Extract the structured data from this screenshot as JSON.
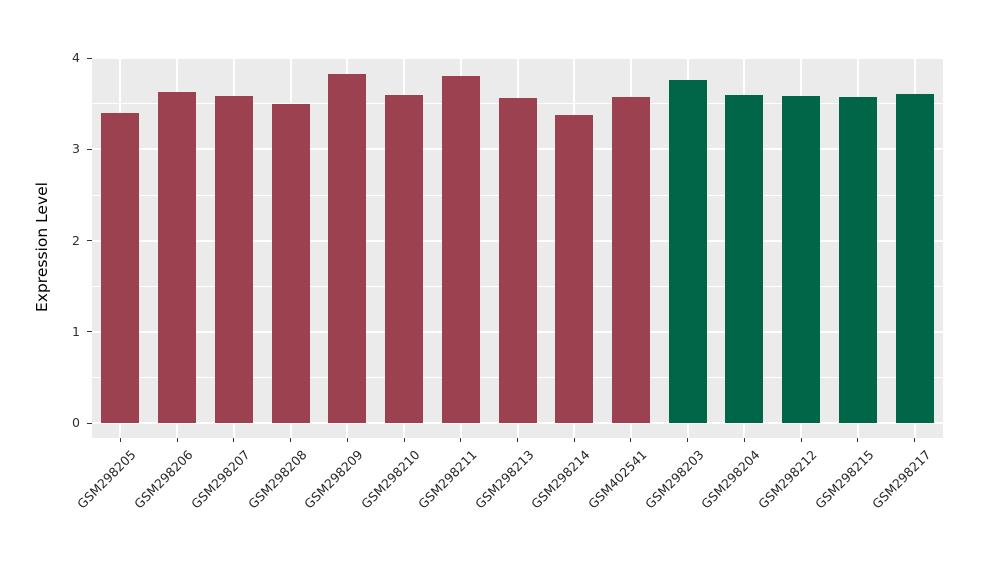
{
  "figure": {
    "background": "#FFFFFF",
    "title": ""
  },
  "chart_data": {
    "type": "bar",
    "title": "",
    "xlabel": "",
    "ylabel": "Expression Level",
    "ylim": [
      0,
      4.05
    ],
    "yticks": [
      0,
      1,
      2,
      3,
      4
    ],
    "ytick_labels": [
      "0",
      "1",
      "2",
      "3",
      "4"
    ],
    "minor_yticks": [
      0.5,
      1.5,
      2.5,
      3.5
    ],
    "grid": "white major horizontal and vertical gridlines with thinner minor horizontal gridlines on grey panel",
    "legend": "none",
    "panel_background": "#EBEBEB",
    "gridline_color": "#FFFFFF",
    "axis_text_color": "#303030",
    "tick_mark_color": "#333333",
    "categories": [
      "GSM298205",
      "GSM298206",
      "GSM298207",
      "GSM298208",
      "GSM298209",
      "GSM298210",
      "GSM298211",
      "GSM298213",
      "GSM298214",
      "GSM402541",
      "GSM298203",
      "GSM298204",
      "GSM298212",
      "GSM298215",
      "GSM298217"
    ],
    "values": [
      3.4,
      3.63,
      3.59,
      3.5,
      3.83,
      3.6,
      3.81,
      3.56,
      3.38,
      3.57,
      3.76,
      3.6,
      3.59,
      3.58,
      3.61
    ],
    "colors": [
      "#9B4150",
      "#9B4150",
      "#9B4150",
      "#9B4150",
      "#9B4150",
      "#9B4150",
      "#9B4150",
      "#9B4150",
      "#9B4150",
      "#9B4150",
      "#006647",
      "#006647",
      "#006647",
      "#006647",
      "#006647"
    ],
    "group_colors": {
      "maroon": "#9B4150",
      "green": "#006647"
    }
  }
}
